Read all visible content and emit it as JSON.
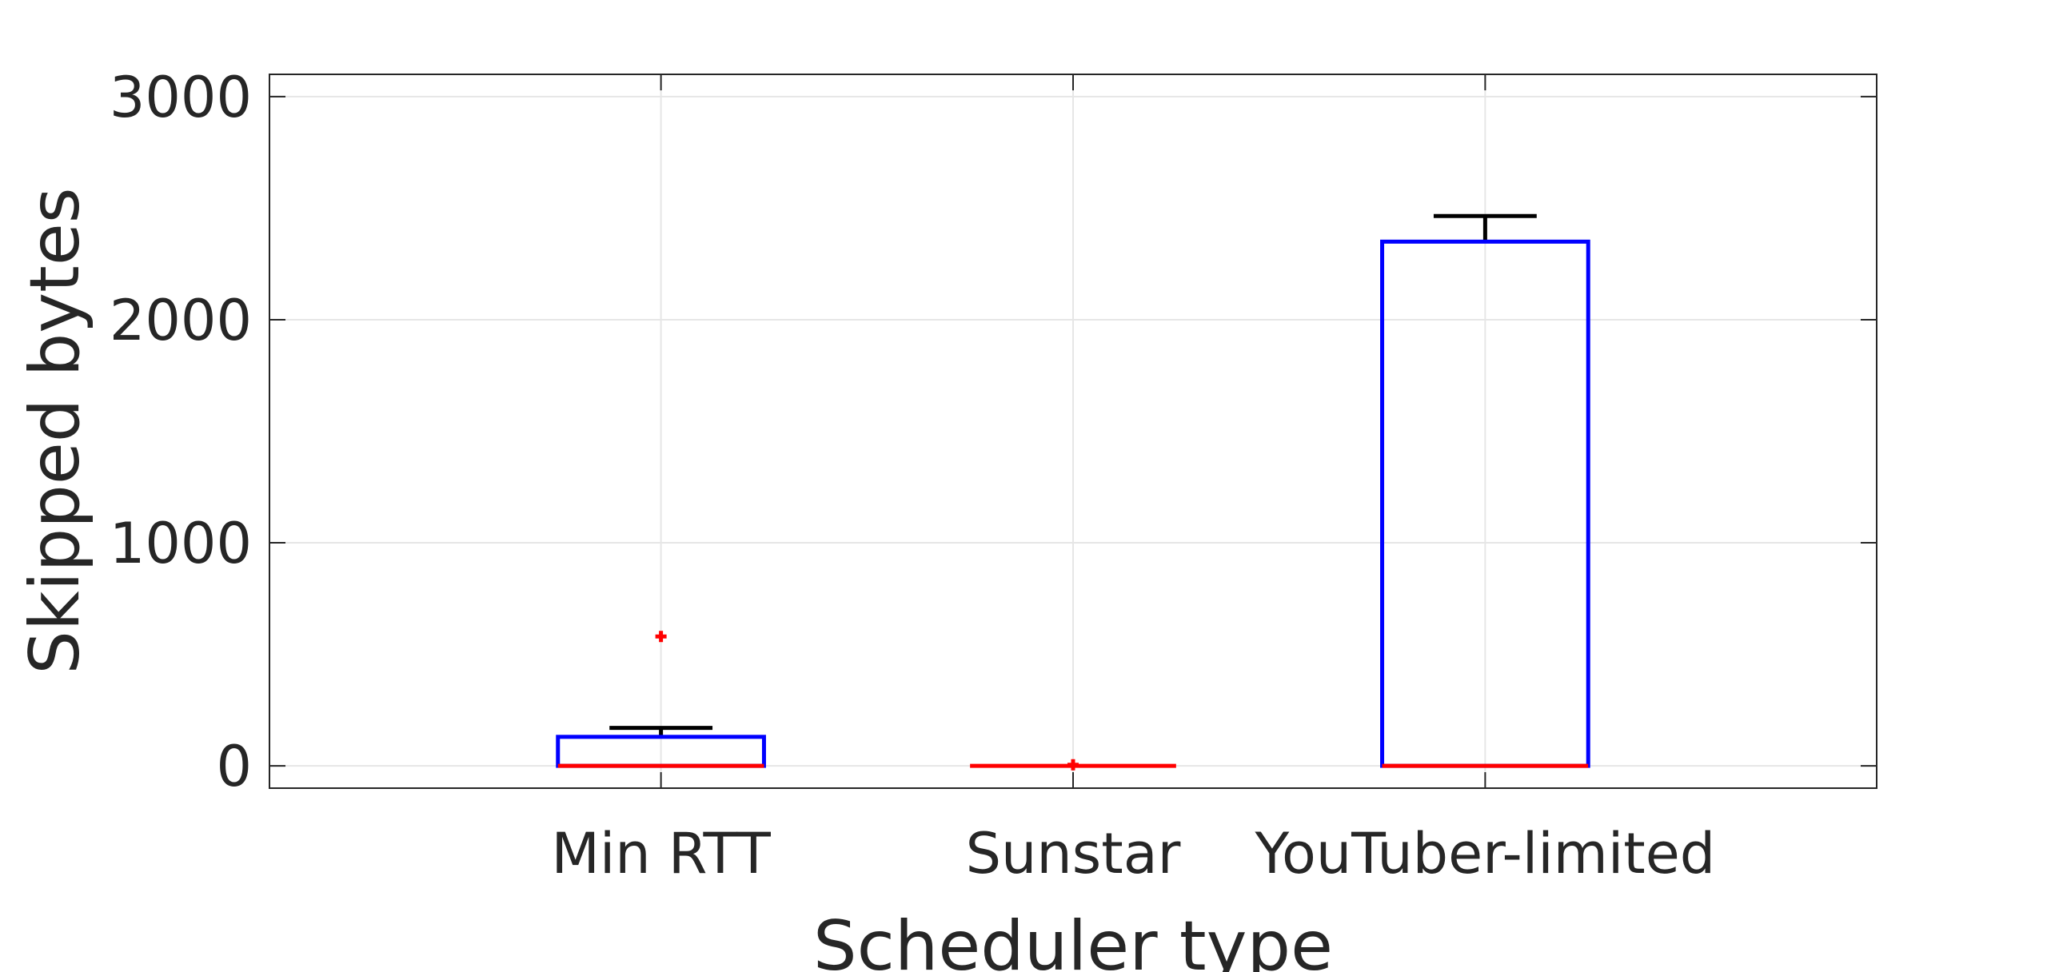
{
  "chart_data": {
    "type": "box",
    "title": "",
    "xlabel": "Scheduler type",
    "ylabel": "Skipped bytes",
    "categories": [
      "Min RTT",
      "Sunstar",
      "YouTuber-limited"
    ],
    "ylim": [
      -100,
      3100
    ],
    "yticks": [
      0,
      1000,
      2000,
      3000
    ],
    "grid": true,
    "boxes": [
      {
        "category": "Min RTT",
        "q1": 0,
        "median": 0,
        "q3": 130,
        "whisker_low": 0,
        "whisker_high": 170,
        "outliers": [
          580
        ]
      },
      {
        "category": "Sunstar",
        "q1": 0,
        "median": 0,
        "q3": 0,
        "whisker_low": 0,
        "whisker_high": 0,
        "outliers": [
          5
        ]
      },
      {
        "category": "YouTuber-limited",
        "q1": 0,
        "median": 0,
        "q3": 2350,
        "whisker_low": 0,
        "whisker_high": 2465,
        "outliers": []
      }
    ],
    "colors": {
      "box": "#0000ff",
      "median": "#ff0000",
      "whisker": "#000000",
      "outlier": "#ff0000",
      "grid": "#e6e6e6",
      "axis": "#262626"
    }
  }
}
